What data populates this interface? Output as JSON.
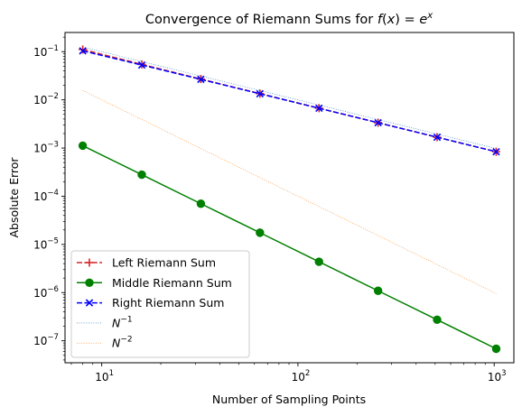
{
  "chart_data": {
    "type": "line",
    "title": "Convergence of Riemann Sums for ",
    "title_math": {
      "fx": "f",
      "paren_open": "(",
      "x": "x",
      "paren_close": ")",
      "eq": " = ",
      "e": "e",
      "exp": "x"
    },
    "xlabel": "Number of Sampling Points",
    "ylabel": "Absolute Error",
    "xscale": "log",
    "yscale": "log",
    "xlim": [
      6.5,
      1260
    ],
    "ylim": [
      3.5e-08,
      0.25
    ],
    "x": [
      8,
      16,
      32,
      64,
      128,
      256,
      512,
      1024
    ],
    "x_ticks": [
      {
        "base": "10",
        "exp": "1",
        "value": 10
      },
      {
        "base": "10",
        "exp": "2",
        "value": 100
      },
      {
        "base": "10",
        "exp": "3",
        "value": 1000
      }
    ],
    "y_ticks": [
      {
        "base": "10",
        "exp": "−7",
        "value": 1e-07
      },
      {
        "base": "10",
        "exp": "−6",
        "value": 1e-06
      },
      {
        "base": "10",
        "exp": "−5",
        "value": 1e-05
      },
      {
        "base": "10",
        "exp": "−4",
        "value": 0.0001
      },
      {
        "base": "10",
        "exp": "−3",
        "value": 0.001
      },
      {
        "base": "10",
        "exp": "−2",
        "value": 0.01
      },
      {
        "base": "10",
        "exp": "−1",
        "value": 0.1
      }
    ],
    "series": [
      {
        "name": "Left Riemann Sum",
        "color": "#d62728",
        "linestyle": "dashed",
        "marker": "plus",
        "values": [
          0.1109,
          0.0545,
          0.027,
          0.01347,
          0.00672,
          0.003357,
          0.001678,
          0.000839
        ]
      },
      {
        "name": "Middle Riemann Sum",
        "color": "#008000",
        "linestyle": "solid",
        "marker": "circle",
        "values": [
          0.00112,
          0.00028,
          6.99e-05,
          1.75e-05,
          4.37e-06,
          1.09e-06,
          2.73e-07,
          6.83e-08
        ]
      },
      {
        "name": "Right Riemann Sum",
        "color": "#0000ff",
        "linestyle": "dashed",
        "marker": "x",
        "values": [
          0.1039,
          0.0528,
          0.0266,
          0.01336,
          0.00669,
          0.003349,
          0.001676,
          0.000838
        ]
      },
      {
        "name": "N^-1",
        "label_base": "N",
        "label_exp": "−1",
        "color": "#1f77b4",
        "linestyle": "dotted",
        "marker": "none",
        "values": [
          0.125,
          0.0625,
          0.03125,
          0.015625,
          0.0078125,
          0.00390625,
          0.001953125,
          0.0009765625
        ]
      },
      {
        "name": "N^-2",
        "label_base": "N",
        "label_exp": "−2",
        "color": "#ff7f0e",
        "linestyle": "dotted",
        "marker": "none",
        "values": [
          0.015625,
          0.00390625,
          0.0009765625,
          0.000244140625,
          6.103515625e-05,
          1.52587890625e-05,
          3.814697265625e-06,
          9.5367431640625e-07
        ]
      }
    ],
    "legend_position": "lower-left",
    "grid": false
  }
}
